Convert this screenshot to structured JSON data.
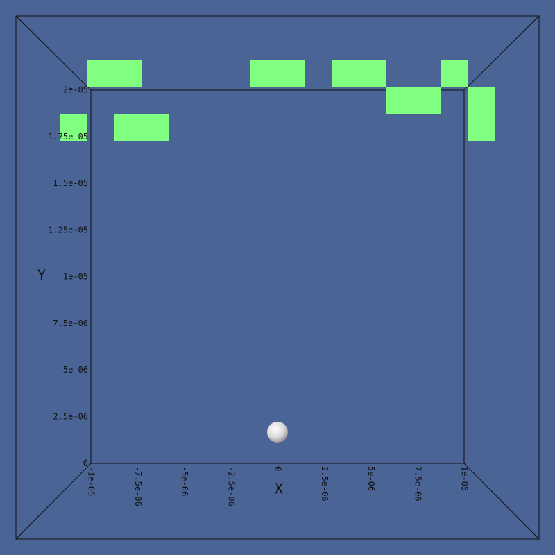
{
  "scene": {
    "x_axis": {
      "label": "X",
      "ticks": [
        "-1e-05",
        "-7.5e-06",
        "-5e-06",
        "-2.5e-06",
        "0",
        "2.5e-06",
        "5e-06",
        "7.5e-06",
        "1e-05"
      ]
    },
    "y_axis": {
      "label": "Y",
      "ticks": [
        "0",
        "2.5e-06",
        "5e-06",
        "7.5e-06",
        "1e-05",
        "1.25e-05",
        "1.5e-05",
        "1.75e-05",
        "2e-05"
      ]
    }
  }
}
